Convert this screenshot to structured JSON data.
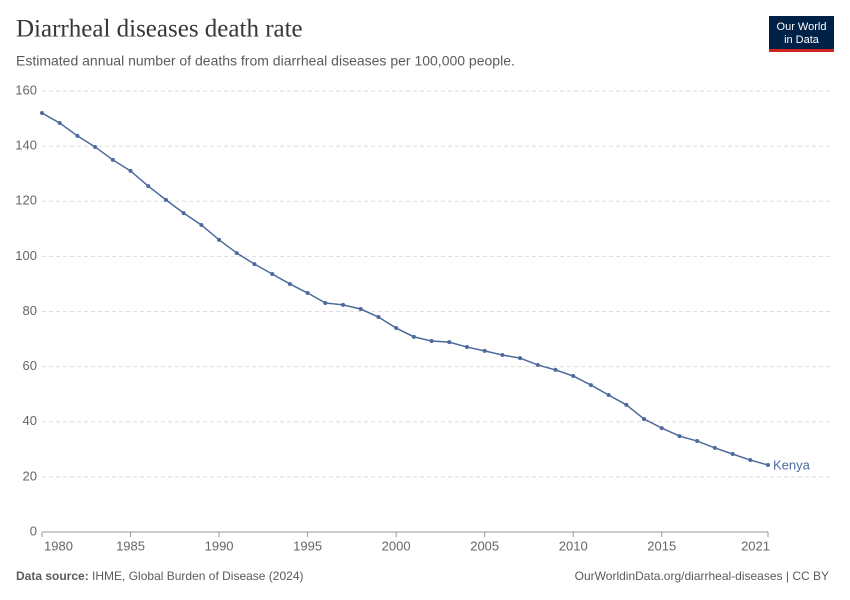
{
  "chart_data": {
    "type": "line",
    "title": "Diarrheal diseases death rate",
    "subtitle": "Estimated annual number of deaths from diarrheal diseases per 100,000 people.",
    "x": [
      1980,
      1981,
      1982,
      1983,
      1984,
      1985,
      1986,
      1987,
      1988,
      1989,
      1990,
      1991,
      1992,
      1993,
      1994,
      1995,
      1996,
      1997,
      1998,
      1999,
      2000,
      2001,
      2002,
      2003,
      2004,
      2005,
      2006,
      2007,
      2008,
      2009,
      2010,
      2011,
      2012,
      2013,
      2014,
      2015,
      2016,
      2017,
      2018,
      2019,
      2020,
      2021
    ],
    "series": [
      {
        "name": "Kenya",
        "color": "#4c6a9c",
        "values": [
          152.0,
          148.4,
          143.7,
          139.7,
          135.0,
          131.0,
          125.5,
          120.5,
          115.7,
          111.4,
          106.0,
          101.2,
          97.2,
          93.6,
          90.0,
          86.7,
          83.1,
          82.4,
          80.9,
          78.0,
          74.0,
          70.8,
          69.3,
          68.9,
          67.1,
          65.7,
          64.2,
          63.1,
          60.6,
          58.8,
          56.6,
          53.3,
          49.7,
          46.1,
          41.0,
          37.7,
          34.8,
          33.0,
          30.5,
          28.3,
          26.1,
          24.3
        ]
      }
    ],
    "xlim": [
      1980,
      2021
    ],
    "xticks": [
      1980,
      1985,
      1990,
      1995,
      2000,
      2005,
      2010,
      2015,
      2021
    ],
    "ylim": [
      0,
      160
    ],
    "yticks": [
      0,
      20,
      40,
      60,
      80,
      100,
      120,
      140,
      160
    ],
    "grid": true,
    "source_label": "Data source:",
    "source": "IHME, Global Burden of Disease (2024)",
    "credit": "OurWorldinData.org/diarrheal-diseases | CC BY"
  },
  "logo": {
    "line1": "Our World",
    "line2": "in Data"
  }
}
